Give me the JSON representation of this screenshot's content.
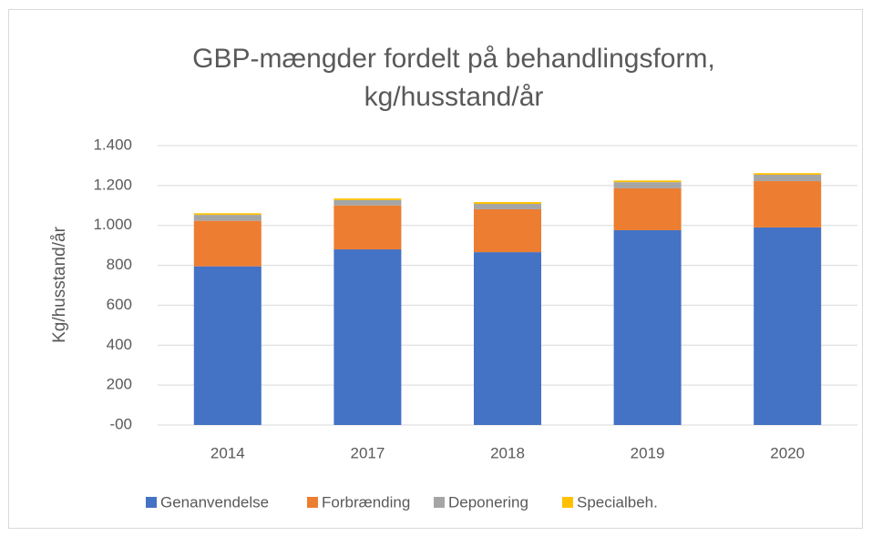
{
  "chart_data": {
    "type": "stacked_bar",
    "title": [
      "GBP-mængder fordelt på behandlingsform,",
      "kg/husstand/år"
    ],
    "y_label": "Kg/husstand/år",
    "categories": [
      "2014",
      "2017",
      "2018",
      "2019",
      "2020"
    ],
    "series": [
      {
        "name": "Genanvendelse",
        "color": "#4472c4",
        "values": [
          795,
          880,
          866,
          976,
          990
        ]
      },
      {
        "name": "Forbrænding",
        "color": "#ed7d31",
        "values": [
          228,
          220,
          215,
          210,
          232
        ]
      },
      {
        "name": "Deponering",
        "color": "#a5a5a5",
        "values": [
          30,
          27,
          27,
          31,
          32
        ]
      },
      {
        "name": "Specialbeh.",
        "color": "#ffc000",
        "values": [
          8,
          8,
          9,
          8,
          8
        ]
      }
    ],
    "ylim": [
      0,
      1400
    ],
    "yticks": [
      {
        "value": 0,
        "label": "-00"
      },
      200,
      400,
      600,
      800,
      {
        "value": 1000,
        "label": "1.000"
      },
      {
        "value": 1200,
        "label": "1.200"
      },
      {
        "value": 1400,
        "label": "1.400"
      }
    ],
    "grid": true,
    "legend": "bottom"
  }
}
